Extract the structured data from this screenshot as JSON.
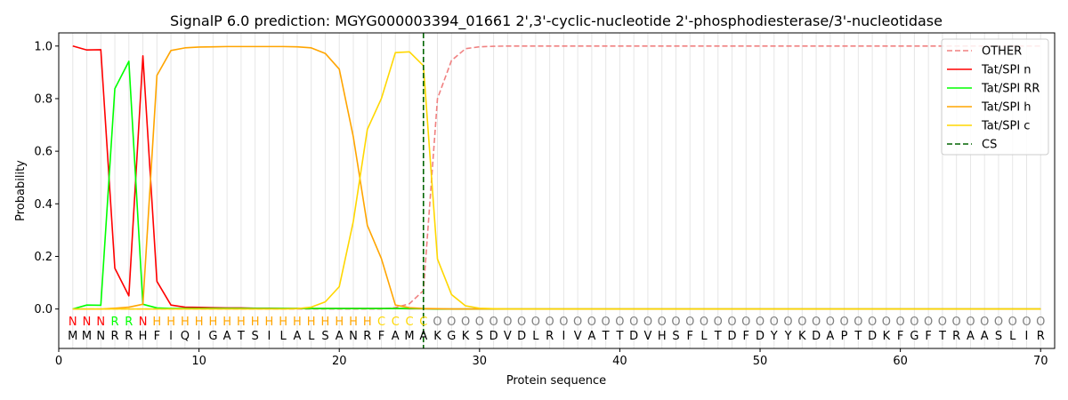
{
  "chart_data": {
    "type": "line",
    "title": "SignalP 6.0 prediction: MGYG000003394_01661 2',3'-cyclic-nucleotide 2'-phosphodiesterase/3'-nucleotidase",
    "xlabel": "Protein sequence",
    "ylabel": "Probability",
    "xlim": [
      0,
      71
    ],
    "ylim": [
      -0.15,
      1.05
    ],
    "xticks": [
      0,
      10,
      20,
      30,
      40,
      50,
      60,
      70
    ],
    "yticks": [
      0.0,
      0.2,
      0.4,
      0.6,
      0.8,
      1.0
    ],
    "ytick_labels": [
      "0.0",
      "0.2",
      "0.4",
      "0.6",
      "0.8",
      "1.0"
    ],
    "grid": "vertical lines at each residue",
    "legend_position": "top-right",
    "sequence": [
      "M",
      "M",
      "N",
      "R",
      "R",
      "H",
      "F",
      "I",
      "Q",
      "I",
      "G",
      "A",
      "T",
      "S",
      "I",
      "L",
      "A",
      "L",
      "S",
      "A",
      "N",
      "R",
      "F",
      "A",
      "M",
      "A",
      "K",
      "G",
      "K",
      "S",
      "D",
      "V",
      "D",
      "L",
      "R",
      "I",
      "V",
      "A",
      "T",
      "T",
      "D",
      "V",
      "H",
      "S",
      "F",
      "L",
      "T",
      "D",
      "F",
      "D",
      "Y",
      "Y",
      "K",
      "D",
      "A",
      "P",
      "T",
      "D",
      "K",
      "F",
      "G",
      "F",
      "T",
      "R",
      "A",
      "A",
      "S",
      "L",
      "I",
      "R"
    ],
    "annotation": [
      "N",
      "N",
      "N",
      "R",
      "R",
      "N",
      "H",
      "H",
      "H",
      "H",
      "H",
      "H",
      "H",
      "H",
      "H",
      "H",
      "H",
      "H",
      "H",
      "H",
      "H",
      "H",
      "C",
      "C",
      "C",
      "C",
      "O",
      "O",
      "O",
      "O",
      "O",
      "O",
      "O",
      "O",
      "O",
      "O",
      "O",
      "O",
      "O",
      "O",
      "O",
      "O",
      "O",
      "O",
      "O",
      "O",
      "O",
      "O",
      "O",
      "O",
      "O",
      "O",
      "O",
      "O",
      "O",
      "O",
      "O",
      "O",
      "O",
      "O",
      "O",
      "O",
      "O",
      "O",
      "O",
      "O",
      "O",
      "O",
      "O",
      "O"
    ],
    "annotation_colors": {
      "N": "#ff0000",
      "R": "#00ff00",
      "H": "#ffa500",
      "C": "#ffd700",
      "O": "#808080"
    },
    "cs_position": 26,
    "x": [
      1,
      2,
      3,
      4,
      5,
      6,
      7,
      8,
      9,
      10,
      11,
      12,
      13,
      14,
      15,
      16,
      17,
      18,
      19,
      20,
      21,
      22,
      23,
      24,
      25,
      26,
      27,
      28,
      29,
      30,
      31,
      32,
      33,
      34,
      35,
      36,
      37,
      38,
      39,
      40,
      41,
      42,
      43,
      44,
      45,
      46,
      47,
      48,
      49,
      50,
      51,
      52,
      53,
      54,
      55,
      56,
      57,
      58,
      59,
      60,
      61,
      62,
      63,
      64,
      65,
      66,
      67,
      68,
      69,
      70
    ],
    "series": [
      {
        "name": "OTHER",
        "color": "#f08080",
        "dash": true,
        "values": [
          0.0,
          0.0,
          0.0,
          0.0,
          0.0,
          0.0,
          0.0,
          0.0,
          0.0,
          0.0,
          0.0,
          0.0,
          0.0,
          0.0,
          0.0,
          0.0,
          0.0,
          0.0,
          0.0,
          0.0,
          0.0,
          0.0,
          0.0,
          0.005,
          0.02,
          0.07,
          0.8,
          0.945,
          0.99,
          0.997,
          0.999,
          1.0,
          1.0,
          1.0,
          1.0,
          1.0,
          1.0,
          1.0,
          1.0,
          1.0,
          1.0,
          1.0,
          1.0,
          1.0,
          1.0,
          1.0,
          1.0,
          1.0,
          1.0,
          1.0,
          1.0,
          1.0,
          1.0,
          1.0,
          1.0,
          1.0,
          1.0,
          1.0,
          1.0,
          1.0,
          1.0,
          1.0,
          1.0,
          1.0,
          1.0,
          1.0,
          1.0,
          1.0,
          1.0,
          1.0
        ]
      },
      {
        "name": "Tat/SPI n",
        "color": "#ff0000",
        "dash": false,
        "values": [
          1.0,
          0.985,
          0.986,
          0.155,
          0.05,
          0.963,
          0.105,
          0.015,
          0.007,
          0.006,
          0.005,
          0.004,
          0.004,
          0.003,
          0.003,
          0.002,
          0.002,
          0.002,
          0.002,
          0.002,
          0.002,
          0.002,
          0.002,
          0.002,
          0.001,
          0.001,
          0.0,
          0.0,
          0.0,
          0.0,
          0.0,
          0.0,
          0.0,
          0.0,
          0.0,
          0.0,
          0.0,
          0.0,
          0.0,
          0.0,
          0.0,
          0.0,
          0.0,
          0.0,
          0.0,
          0.0,
          0.0,
          0.0,
          0.0,
          0.0,
          0.0,
          0.0,
          0.0,
          0.0,
          0.0,
          0.0,
          0.0,
          0.0,
          0.0,
          0.0,
          0.0,
          0.0,
          0.0,
          0.0,
          0.0,
          0.0,
          0.0,
          0.0,
          0.0,
          0.0
        ]
      },
      {
        "name": "Tat/SPI RR",
        "color": "#00ff00",
        "dash": false,
        "values": [
          0.0,
          0.015,
          0.014,
          0.838,
          0.942,
          0.018,
          0.004,
          0.002,
          0.002,
          0.002,
          0.002,
          0.002,
          0.002,
          0.002,
          0.002,
          0.002,
          0.002,
          0.002,
          0.002,
          0.002,
          0.002,
          0.002,
          0.002,
          0.002,
          0.002,
          0.001,
          0.0,
          0.0,
          0.0,
          0.0,
          0.0,
          0.0,
          0.0,
          0.0,
          0.0,
          0.0,
          0.0,
          0.0,
          0.0,
          0.0,
          0.0,
          0.0,
          0.0,
          0.0,
          0.0,
          0.0,
          0.0,
          0.0,
          0.0,
          0.0,
          0.0,
          0.0,
          0.0,
          0.0,
          0.0,
          0.0,
          0.0,
          0.0,
          0.0,
          0.0,
          0.0,
          0.0,
          0.0,
          0.0,
          0.0,
          0.0,
          0.0,
          0.0,
          0.0,
          0.0
        ]
      },
      {
        "name": "Tat/SPI h",
        "color": "#ffa500",
        "dash": false,
        "values": [
          0.0,
          0.0,
          0.0,
          0.003,
          0.007,
          0.018,
          0.888,
          0.983,
          0.993,
          0.996,
          0.997,
          0.998,
          0.998,
          0.998,
          0.998,
          0.998,
          0.997,
          0.993,
          0.972,
          0.912,
          0.655,
          0.318,
          0.192,
          0.015,
          0.005,
          0.002,
          0.001,
          0.0,
          0.0,
          0.0,
          0.0,
          0.0,
          0.0,
          0.0,
          0.0,
          0.0,
          0.0,
          0.0,
          0.0,
          0.0,
          0.0,
          0.0,
          0.0,
          0.0,
          0.0,
          0.0,
          0.0,
          0.0,
          0.0,
          0.0,
          0.0,
          0.0,
          0.0,
          0.0,
          0.0,
          0.0,
          0.0,
          0.0,
          0.0,
          0.0,
          0.0,
          0.0,
          0.0,
          0.0,
          0.0,
          0.0,
          0.0,
          0.0,
          0.0,
          0.0
        ]
      },
      {
        "name": "Tat/SPI c",
        "color": "#ffd700",
        "dash": false,
        "values": [
          0.0,
          0.0,
          0.0,
          0.0,
          0.0,
          0.0,
          0.0,
          0.0,
          0.0,
          0.0,
          0.0,
          0.0,
          0.0,
          0.0,
          0.0,
          0.0,
          0.001,
          0.007,
          0.027,
          0.085,
          0.333,
          0.683,
          0.8,
          0.975,
          0.978,
          0.925,
          0.19,
          0.055,
          0.012,
          0.003,
          0.001,
          0.0,
          0.0,
          0.0,
          0.0,
          0.0,
          0.0,
          0.0,
          0.0,
          0.0,
          0.0,
          0.0,
          0.0,
          0.0,
          0.0,
          0.0,
          0.0,
          0.0,
          0.0,
          0.0,
          0.0,
          0.0,
          0.0,
          0.0,
          0.0,
          0.0,
          0.0,
          0.0,
          0.0,
          0.0,
          0.0,
          0.0,
          0.0,
          0.0,
          0.0,
          0.0,
          0.0,
          0.0,
          0.0,
          0.0
        ]
      }
    ],
    "legend": [
      {
        "label": "OTHER",
        "color": "#f08080",
        "dash": true
      },
      {
        "label": "Tat/SPI n",
        "color": "#ff0000",
        "dash": false
      },
      {
        "label": "Tat/SPI RR",
        "color": "#00ff00",
        "dash": false
      },
      {
        "label": "Tat/SPI h",
        "color": "#ffa500",
        "dash": false
      },
      {
        "label": "Tat/SPI c",
        "color": "#ffd700",
        "dash": false
      },
      {
        "label": "CS",
        "color": "#006400",
        "dash": true
      }
    ]
  }
}
